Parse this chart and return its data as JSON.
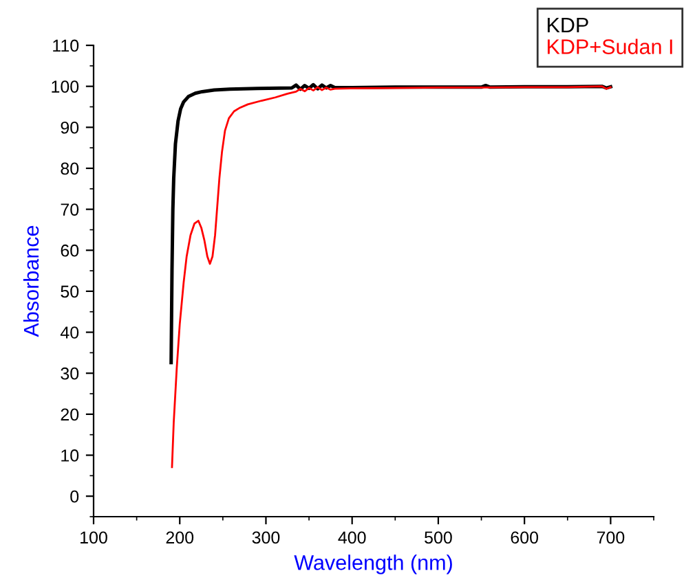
{
  "chart_data": {
    "type": "line",
    "xlabel": "Wavelength (nm)",
    "ylabel": "Absorbance",
    "xlim": [
      100,
      750
    ],
    "ylim": [
      -5,
      110
    ],
    "xticks": [
      100,
      200,
      300,
      400,
      500,
      600,
      700
    ],
    "yticks": [
      0,
      10,
      20,
      30,
      40,
      50,
      60,
      70,
      80,
      90,
      100,
      110
    ],
    "grid": false,
    "legend": "top right",
    "marker": "none",
    "line_style": "solid",
    "series": [
      {
        "name": "KDP",
        "color": "#000000",
        "x": [
          190,
          191,
          192,
          193,
          195,
          198,
          201,
          204.5,
          210,
          218,
          226,
          240,
          258,
          290,
          330,
          335,
          340,
          345,
          350,
          355,
          360,
          365,
          370,
          375,
          380,
          400,
          450,
          500,
          550,
          555,
          560,
          600,
          650,
          690,
          695,
          700
        ],
        "values": [
          32.6,
          55,
          70,
          77.6,
          86,
          91.5,
          94.5,
          96.2,
          97.5,
          98.3,
          98.7,
          99.1,
          99.3,
          99.5,
          99.6,
          100.3,
          99.3,
          100.2,
          99.5,
          100.4,
          99.4,
          100.3,
          99.6,
          100.2,
          99.7,
          99.7,
          99.8,
          99.8,
          99.8,
          100.2,
          99.8,
          99.9,
          99.9,
          100,
          99.6,
          99.9
        ]
      },
      {
        "name": "KDP+Sudan I",
        "color": "#ff0000",
        "x": [
          191,
          193,
          196.5,
          200,
          204.5,
          208,
          212.5,
          217,
          221.6,
          225,
          228.5,
          232,
          235,
          238,
          241,
          246,
          249,
          252.5,
          257,
          263,
          270,
          279,
          295,
          311,
          325,
          335,
          340,
          345,
          350,
          355,
          360,
          365,
          370,
          375,
          380,
          400,
          450,
          500,
          550,
          600,
          650,
          690,
          695,
          700
        ],
        "values": [
          7.1,
          18,
          31.2,
          42,
          52.1,
          58.5,
          63.7,
          66.5,
          67.2,
          65.5,
          62.5,
          58.5,
          56.7,
          58.5,
          63.7,
          77.6,
          84,
          89.2,
          92.2,
          93.9,
          94.8,
          95.6,
          96.5,
          97.3,
          98.2,
          98.7,
          99.4,
          98.8,
          99.6,
          99,
          99.8,
          99.1,
          99.7,
          99.2,
          99.4,
          99.5,
          99.6,
          99.7,
          99.7,
          99.8,
          99.8,
          100,
          99.4,
          99.8
        ]
      }
    ]
  }
}
